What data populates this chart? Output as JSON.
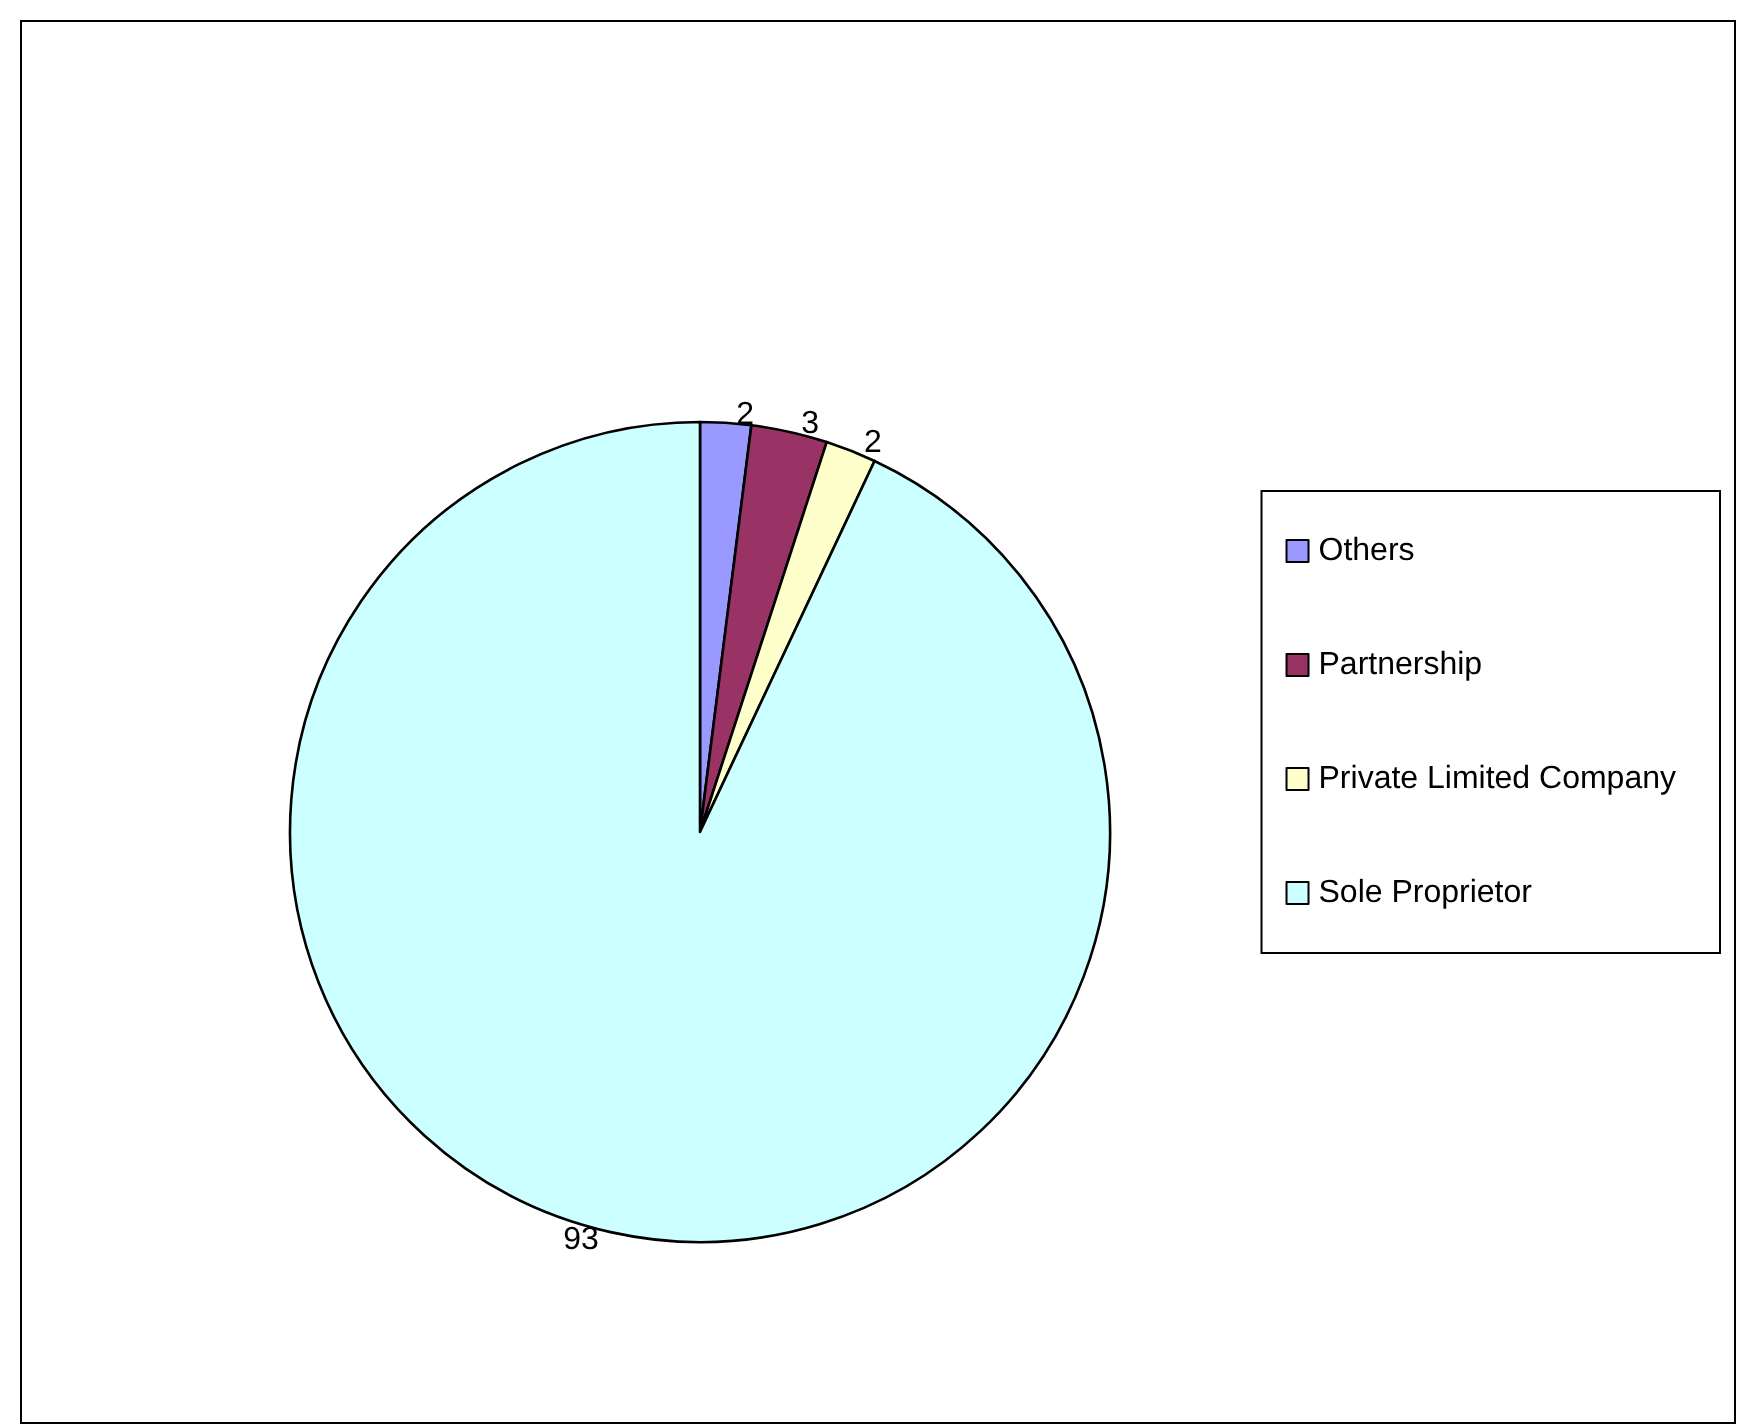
{
  "chart_data": {
    "type": "pie",
    "categories": [
      "Others",
      "Partnership",
      "Private Limited Company",
      "Sole Proprietor"
    ],
    "values": [
      2,
      3,
      2,
      93
    ],
    "colors": [
      "#9999ff",
      "#993366",
      "#ffffcc",
      "#ccffff"
    ],
    "data_labels": true,
    "legend": "right"
  }
}
